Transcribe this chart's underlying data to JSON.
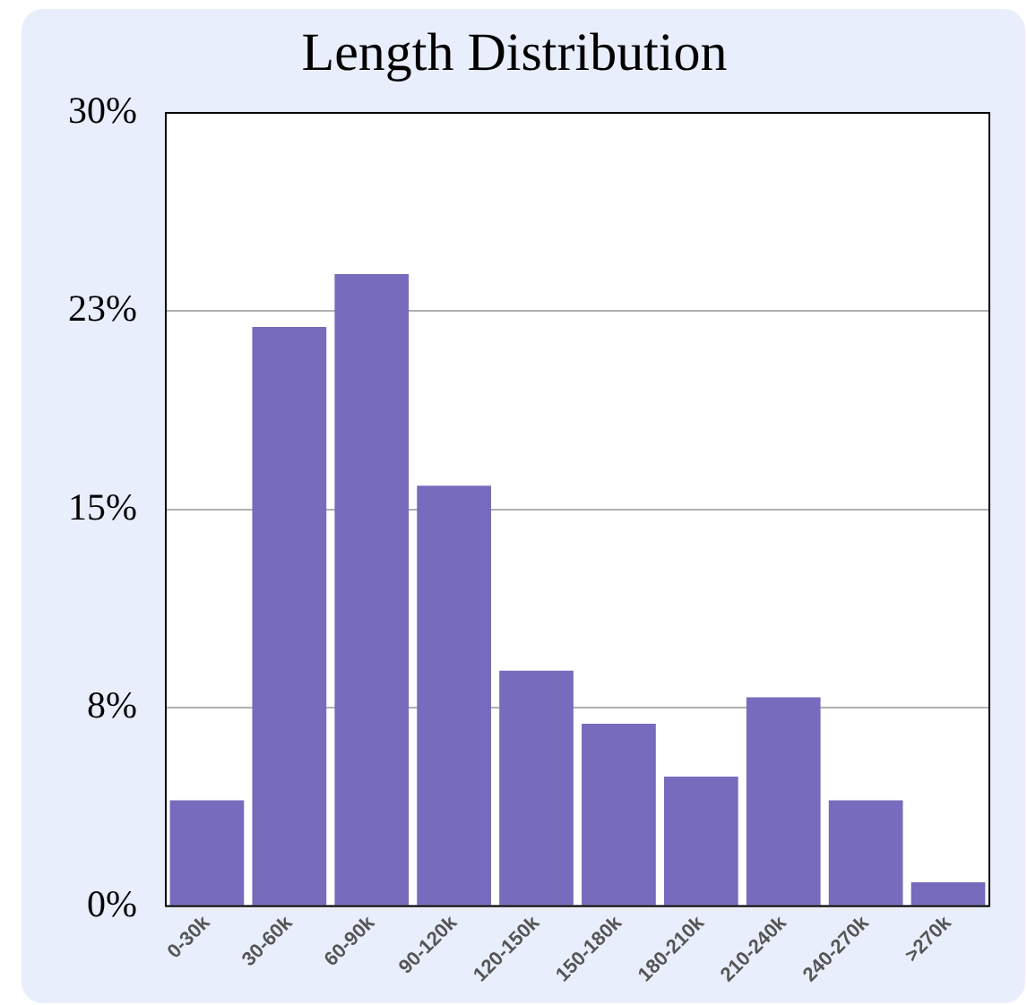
{
  "chart_data": {
    "type": "bar",
    "title": "Length Distribution",
    "categories": [
      "0-30k",
      "30-60k",
      "60-90k",
      "90-120k",
      "120-150k",
      "150-180k",
      "180-210k",
      "210-240k",
      "240-270k",
      ">270k"
    ],
    "values": [
      4.0,
      21.9,
      23.9,
      15.9,
      8.9,
      6.9,
      4.9,
      7.9,
      4.0,
      0.9
    ],
    "color": "#776bbd",
    "ylim": [
      0,
      30
    ],
    "yticks": [
      {
        "value": 0,
        "label": "0%"
      },
      {
        "value": 7.5,
        "label": "8%"
      },
      {
        "value": 15,
        "label": "15%"
      },
      {
        "value": 22.5,
        "label": "23%"
      },
      {
        "value": 30,
        "label": "30%"
      }
    ],
    "grid": "y",
    "legend": false
  }
}
